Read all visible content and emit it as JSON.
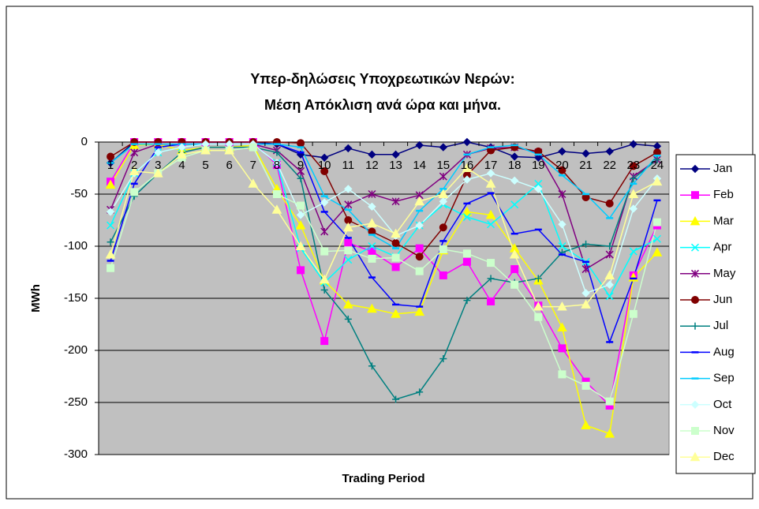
{
  "chart_data": {
    "type": "line",
    "title": [
      "Υπερ-δηλώσεις Υποχρεωτικών Νερών:",
      "Μέση Απόκλιση ανά ώρα και μήνα."
    ],
    "xlabel": "Trading Period",
    "ylabel": "MWh",
    "categories": [
      "1",
      "2",
      "3",
      "4",
      "5",
      "6",
      "7",
      "8",
      "9",
      "10",
      "11",
      "12",
      "13",
      "14",
      "15",
      "16",
      "17",
      "18",
      "19",
      "20",
      "21",
      "22",
      "23",
      "24"
    ],
    "ylim": [
      -300,
      0
    ],
    "yticks": [
      -300,
      -250,
      -200,
      -150,
      -100,
      -50,
      0
    ],
    "grid": true,
    "legend": "right",
    "plot_background": "#c0c0c0",
    "series": [
      {
        "name": "Jan",
        "color": "#000080",
        "marker": "diamond",
        "values": [
          -20,
          0,
          0,
          0,
          0,
          0,
          0,
          -2,
          -12,
          -15,
          -6,
          -12,
          -12,
          -3,
          -5,
          0,
          -5,
          -14,
          -15,
          -9,
          -11,
          -9,
          -2,
          -4
        ]
      },
      {
        "name": "Feb",
        "color": "#ff00ff",
        "marker": "square",
        "values": [
          -38,
          0,
          0,
          0,
          0,
          0,
          0,
          -22,
          -123,
          -191,
          -97,
          -105,
          -120,
          -102,
          -128,
          -115,
          -153,
          -122,
          -157,
          -198,
          -230,
          -253,
          -128,
          -80
        ]
      },
      {
        "name": "Mar",
        "color": "#ffff00",
        "marker": "triangle",
        "values": [
          -41,
          -3,
          -2,
          -8,
          -5,
          -5,
          -3,
          -45,
          -80,
          -133,
          -156,
          -160,
          -165,
          -163,
          -104,
          -67,
          -70,
          -102,
          -133,
          -178,
          -272,
          -280,
          -130,
          -106
        ]
      },
      {
        "name": "Apr",
        "color": "#00ffff",
        "marker": "x",
        "values": [
          -80,
          -30,
          -10,
          -5,
          -2,
          -2,
          -2,
          -20,
          -102,
          -135,
          -113,
          -100,
          -110,
          -80,
          -60,
          -72,
          -79,
          -60,
          -40,
          -100,
          -115,
          -148,
          -105,
          -93
        ]
      },
      {
        "name": "May",
        "color": "#800080",
        "marker": "star",
        "values": [
          -65,
          -10,
          -2,
          -2,
          -2,
          -2,
          -2,
          -8,
          -28,
          -86,
          -60,
          -50,
          -57,
          -51,
          -33,
          -12,
          -6,
          -5,
          -10,
          -50,
          -122,
          -108,
          -33,
          -17
        ]
      },
      {
        "name": "Jun",
        "color": "#800000",
        "marker": "circle",
        "values": [
          -14,
          0,
          0,
          0,
          0,
          0,
          0,
          0,
          -1,
          -28,
          -75,
          -86,
          -97,
          -110,
          -82,
          -32,
          -8,
          -5,
          -9,
          -27,
          -53,
          -59,
          -23,
          -10
        ]
      },
      {
        "name": "Jul",
        "color": "#008080",
        "marker": "plus",
        "values": [
          -96,
          -52,
          -30,
          -10,
          -5,
          -5,
          -5,
          -10,
          -35,
          -142,
          -170,
          -215,
          -247,
          -240,
          -208,
          -152,
          -131,
          -135,
          -131,
          -106,
          -98,
          -100,
          -35,
          -17
        ]
      },
      {
        "name": "Aug",
        "color": "#0000ff",
        "marker": "dash",
        "values": [
          -114,
          -40,
          -5,
          -2,
          -2,
          -2,
          -2,
          -2,
          -10,
          -67,
          -92,
          -130,
          -156,
          -158,
          -95,
          -59,
          -49,
          -88,
          -84,
          -108,
          -115,
          -192,
          -131,
          -56
        ]
      },
      {
        "name": "Sep",
        "color": "#00ccff",
        "marker": "dash",
        "values": [
          -20,
          -2,
          -2,
          -2,
          -2,
          -2,
          -2,
          -2,
          -5,
          -52,
          -65,
          -89,
          -102,
          -66,
          -45,
          -12,
          -5,
          -3,
          -12,
          -32,
          -50,
          -73,
          -40,
          -13
        ]
      },
      {
        "name": "Oct",
        "color": "#ccffff",
        "marker": "diamond",
        "values": [
          -67,
          -30,
          -10,
          -5,
          -2,
          -2,
          -2,
          -20,
          -70,
          -58,
          -45,
          -62,
          -90,
          -80,
          -57,
          -36,
          -30,
          -37,
          -45,
          -79,
          -145,
          -137,
          -64,
          -35
        ]
      },
      {
        "name": "Nov",
        "color": "#ccffcc",
        "marker": "square",
        "values": [
          -121,
          -48,
          -30,
          -15,
          -8,
          -8,
          -5,
          -50,
          -61,
          -105,
          -104,
          -112,
          -111,
          -124,
          -103,
          -107,
          -116,
          -137,
          -168,
          -223,
          -234,
          -249,
          -165,
          -77
        ]
      },
      {
        "name": "Dec",
        "color": "#ffff99",
        "marker": "triangle",
        "values": [
          -108,
          -28,
          -30,
          -12,
          -8,
          -8,
          -40,
          -65,
          -100,
          -132,
          -82,
          -78,
          -88,
          -57,
          -50,
          -25,
          -40,
          -108,
          -158,
          -158,
          -156,
          -128,
          -50,
          -38
        ]
      }
    ]
  }
}
